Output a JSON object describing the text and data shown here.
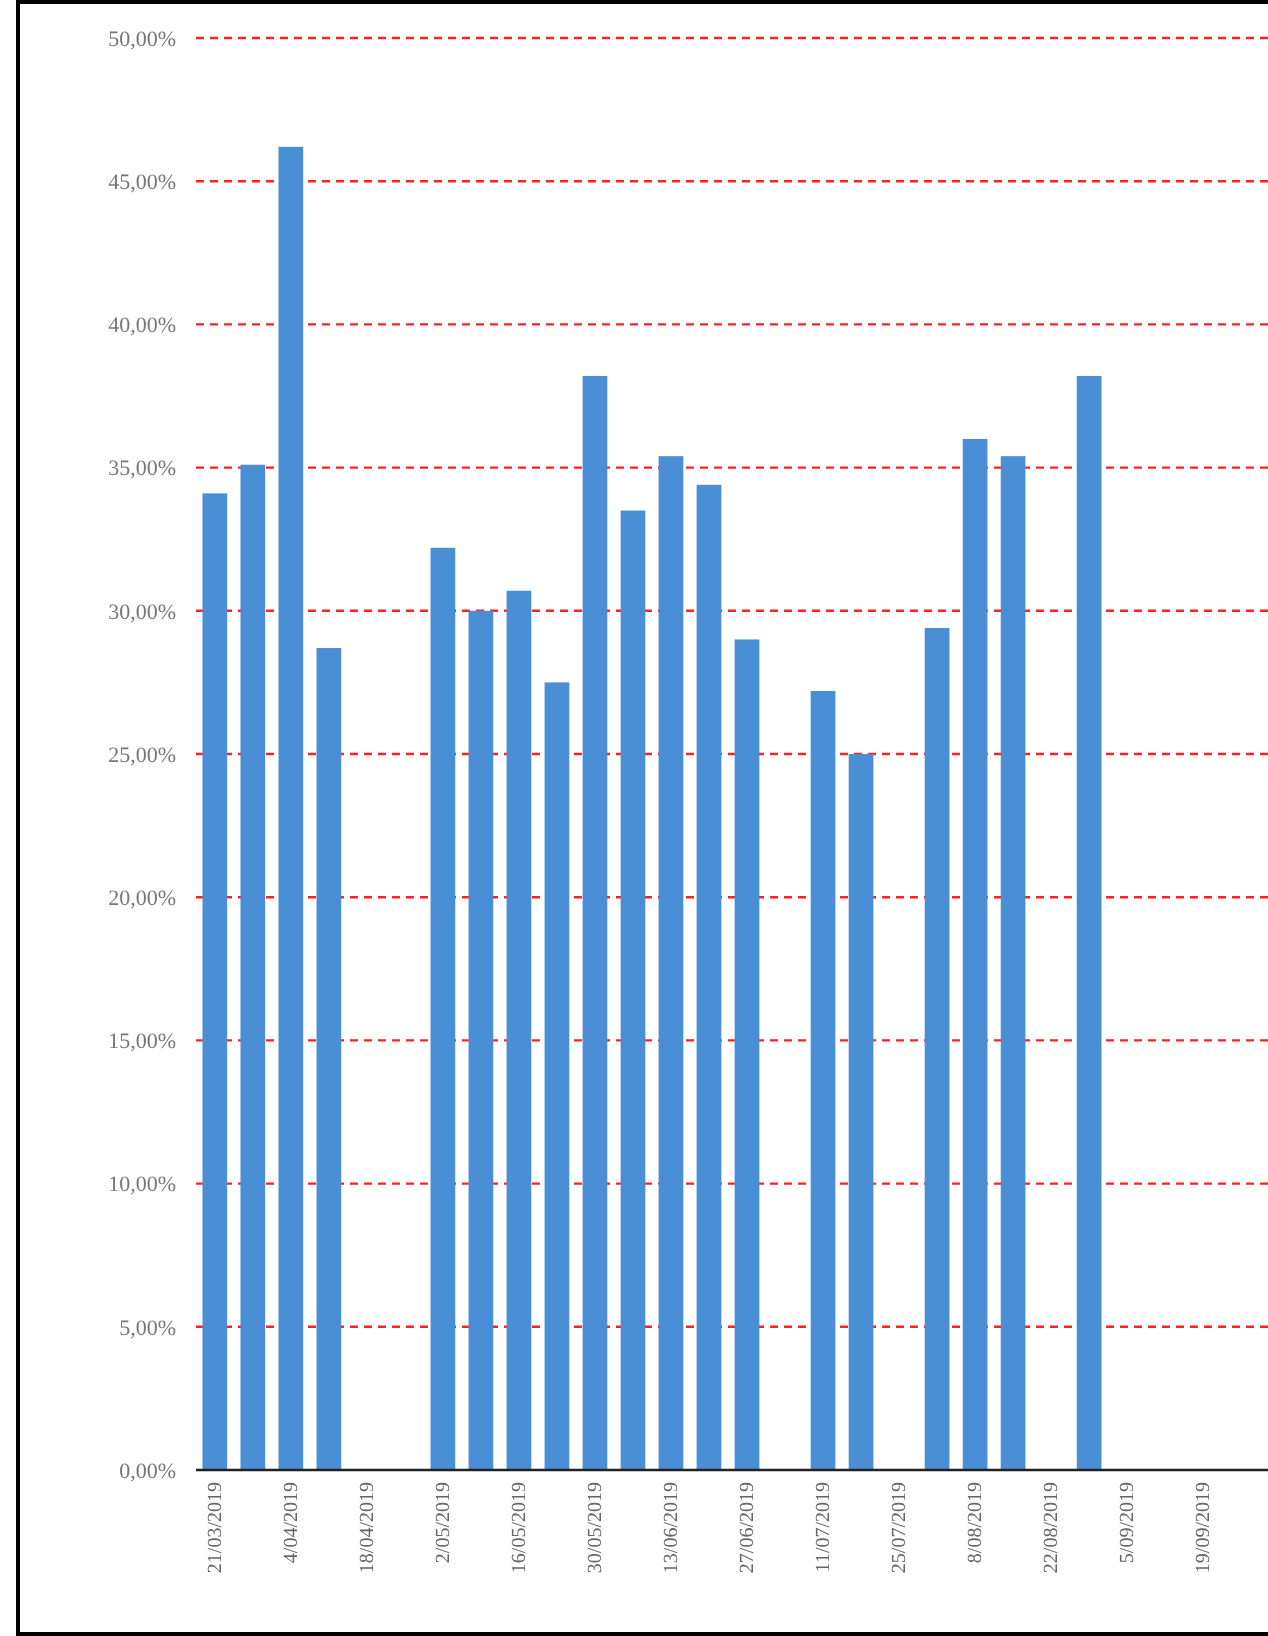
{
  "chart_data": {
    "type": "bar",
    "categories": [
      "21/03/2019",
      null,
      "4/04/2019",
      null,
      "18/04/2019",
      null,
      "2/05/2019",
      null,
      "16/05/2019",
      null,
      "30/05/2019",
      null,
      "13/06/2019",
      null,
      "27/06/2019",
      null,
      "11/07/2019",
      null,
      "25/07/2019",
      null,
      "8/08/2019",
      null,
      "22/08/2019",
      null,
      "5/09/2019",
      null,
      "19/09/2019",
      null
    ],
    "values": [
      34.1,
      35.1,
      46.2,
      28.7,
      null,
      null,
      32.2,
      30.0,
      30.7,
      27.5,
      38.2,
      33.5,
      35.4,
      34.4,
      29.0,
      null,
      27.2,
      25.0,
      null,
      29.4,
      36.0,
      35.4,
      null,
      38.2,
      null,
      null,
      null,
      null
    ],
    "color": "#4a8fd6",
    "ylim": [
      0,
      50
    ],
    "yticks": [
      {
        "value": 0,
        "label": "0,00%"
      },
      {
        "value": 5,
        "label": "5,00%"
      },
      {
        "value": 10,
        "label": "10,00%"
      },
      {
        "value": 15,
        "label": "15,00%"
      },
      {
        "value": 20,
        "label": "20,00%"
      },
      {
        "value": 25,
        "label": "25,00%"
      },
      {
        "value": 30,
        "label": "30,00%"
      },
      {
        "value": 35,
        "label": "35,00%"
      },
      {
        "value": 40,
        "label": "40,00%"
      },
      {
        "value": 45,
        "label": "45,00%"
      },
      {
        "value": 50,
        "label": "50,00%"
      }
    ],
    "grid": "y"
  }
}
